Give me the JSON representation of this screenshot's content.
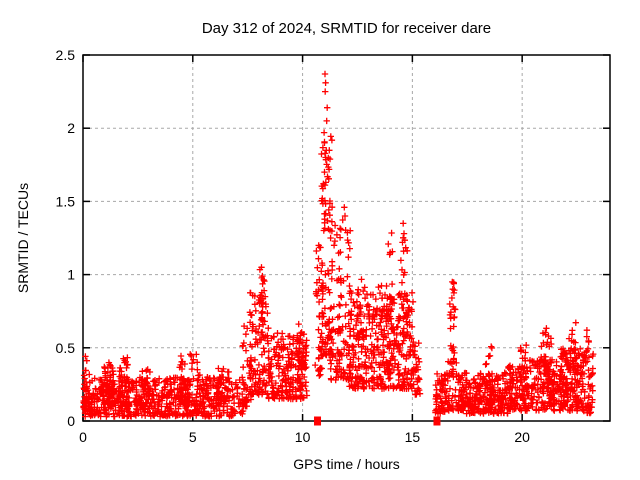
{
  "chart_data": {
    "type": "scatter",
    "title": "Day 312 of 2024, SRMTID for receiver dare",
    "xlabel": "GPS time / hours",
    "ylabel": "SRMTID / TECUs",
    "xlim": [
      0,
      24
    ],
    "ylim": [
      0,
      2.5
    ],
    "xticks": [
      0,
      5,
      10,
      15,
      20
    ],
    "xtick_labels": [
      "0",
      "5",
      "10",
      "15",
      "20"
    ],
    "yticks": [
      0,
      0.5,
      1,
      1.5,
      2,
      2.5
    ],
    "ytick_labels": [
      "0",
      "0.5",
      "1",
      "1.5",
      "2",
      "2.5"
    ],
    "grid": true,
    "grid_style": "dashed",
    "grid_color": "#a8a8a8",
    "legend": "none",
    "marker": "plus",
    "point_color": "#ff0000",
    "background_color": "#ffffff",
    "border_color": "#000000",
    "series_name": "SRMTID",
    "max_value": 2.37,
    "max_value_hour": 11.0,
    "event_flags_x": [
      10.68,
      16.12
    ],
    "data_gaps_hours": [
      [
        10.25,
        10.55
      ],
      [
        15.35,
        16.05
      ],
      [
        23.25,
        24.0
      ]
    ],
    "notable_points": [
      [
        11.02,
        2.37
      ],
      [
        11.05,
        2.31
      ],
      [
        11.03,
        2.25
      ],
      [
        11.12,
        2.14
      ],
      [
        11.1,
        2.05
      ],
      [
        10.98,
        1.97
      ],
      [
        11.0,
        1.9
      ],
      [
        11.05,
        1.8
      ],
      [
        11.0,
        1.7
      ],
      [
        10.95,
        1.62
      ],
      [
        10.9,
        1.52
      ],
      [
        8.13,
        1.05
      ],
      [
        8.17,
        0.99
      ],
      [
        11.9,
        1.46
      ],
      [
        11.93,
        1.4
      ],
      [
        14.58,
        1.35
      ],
      [
        14.62,
        1.28
      ],
      [
        14.55,
        1.22
      ],
      [
        14.6,
        1.16
      ],
      [
        16.82,
        0.95
      ],
      [
        16.84,
        0.9
      ],
      [
        16.8,
        0.84
      ],
      [
        16.86,
        0.78
      ],
      [
        22.95,
        0.62
      ],
      [
        20.95,
        0.6
      ],
      [
        21.2,
        0.58
      ]
    ],
    "density_segments": [
      [
        0.0,
        0.3,
        30,
        0.08,
        0.46,
        1.5
      ],
      [
        0.05,
        7.35,
        650,
        0.03,
        0.3,
        1.25
      ],
      [
        0.9,
        1.45,
        40,
        0.1,
        0.4,
        1.4
      ],
      [
        1.6,
        2.15,
        45,
        0.1,
        0.44,
        1.4
      ],
      [
        2.55,
        3.05,
        30,
        0.1,
        0.36,
        1.4
      ],
      [
        4.35,
        5.35,
        60,
        0.1,
        0.46,
        1.4
      ],
      [
        6.05,
        6.65,
        35,
        0.1,
        0.36,
        1.4
      ],
      [
        7.25,
        7.65,
        40,
        0.1,
        0.66,
        1.6
      ],
      [
        7.6,
        8.5,
        110,
        0.18,
        0.88,
        1.7
      ],
      [
        8.02,
        8.28,
        20,
        0.55,
        1.06,
        1.3
      ],
      [
        8.45,
        10.2,
        200,
        0.15,
        0.6,
        1.5
      ],
      [
        9.2,
        10.15,
        25,
        0.35,
        0.74,
        1.4
      ],
      [
        10.55,
        10.95,
        45,
        0.3,
        1.25,
        1.5
      ],
      [
        10.85,
        11.35,
        70,
        0.45,
        2.0,
        2.0
      ],
      [
        10.95,
        11.25,
        22,
        1.3,
        2.0,
        1.2
      ],
      [
        11.25,
        11.75,
        55,
        0.28,
        1.35,
        1.8
      ],
      [
        11.7,
        12.2,
        55,
        0.28,
        1.48,
        2.0
      ],
      [
        12.1,
        15.1,
        380,
        0.22,
        0.88,
        1.4
      ],
      [
        12.45,
        12.85,
        18,
        0.55,
        0.97,
        1.3
      ],
      [
        13.35,
        13.65,
        12,
        0.6,
        1.02,
        1.3
      ],
      [
        13.8,
        14.1,
        16,
        0.6,
        1.3,
        1.4
      ],
      [
        14.45,
        14.8,
        18,
        0.7,
        1.38,
        1.3
      ],
      [
        15.0,
        15.35,
        28,
        0.18,
        0.55,
        1.4
      ],
      [
        16.05,
        16.5,
        55,
        0.05,
        0.33,
        1.3
      ],
      [
        16.7,
        16.95,
        26,
        0.28,
        0.97,
        1.4
      ],
      [
        16.45,
        17.15,
        45,
        0.07,
        0.42,
        1.3
      ],
      [
        17.1,
        19.35,
        260,
        0.05,
        0.33,
        1.3
      ],
      [
        18.3,
        18.7,
        18,
        0.22,
        0.56,
        1.4
      ],
      [
        19.35,
        20.25,
        110,
        0.07,
        0.38,
        1.3
      ],
      [
        19.9,
        20.2,
        14,
        0.28,
        0.52,
        1.4
      ],
      [
        20.25,
        21.65,
        160,
        0.07,
        0.42,
        1.3
      ],
      [
        20.85,
        21.35,
        22,
        0.28,
        0.64,
        1.4
      ],
      [
        21.65,
        22.8,
        170,
        0.07,
        0.5,
        1.35
      ],
      [
        22.1,
        22.55,
        20,
        0.35,
        0.68,
        1.4
      ],
      [
        22.8,
        23.25,
        45,
        0.05,
        0.5,
        1.4
      ],
      [
        22.85,
        23.05,
        8,
        0.4,
        0.62,
        1.3
      ]
    ],
    "seed": 312
  }
}
